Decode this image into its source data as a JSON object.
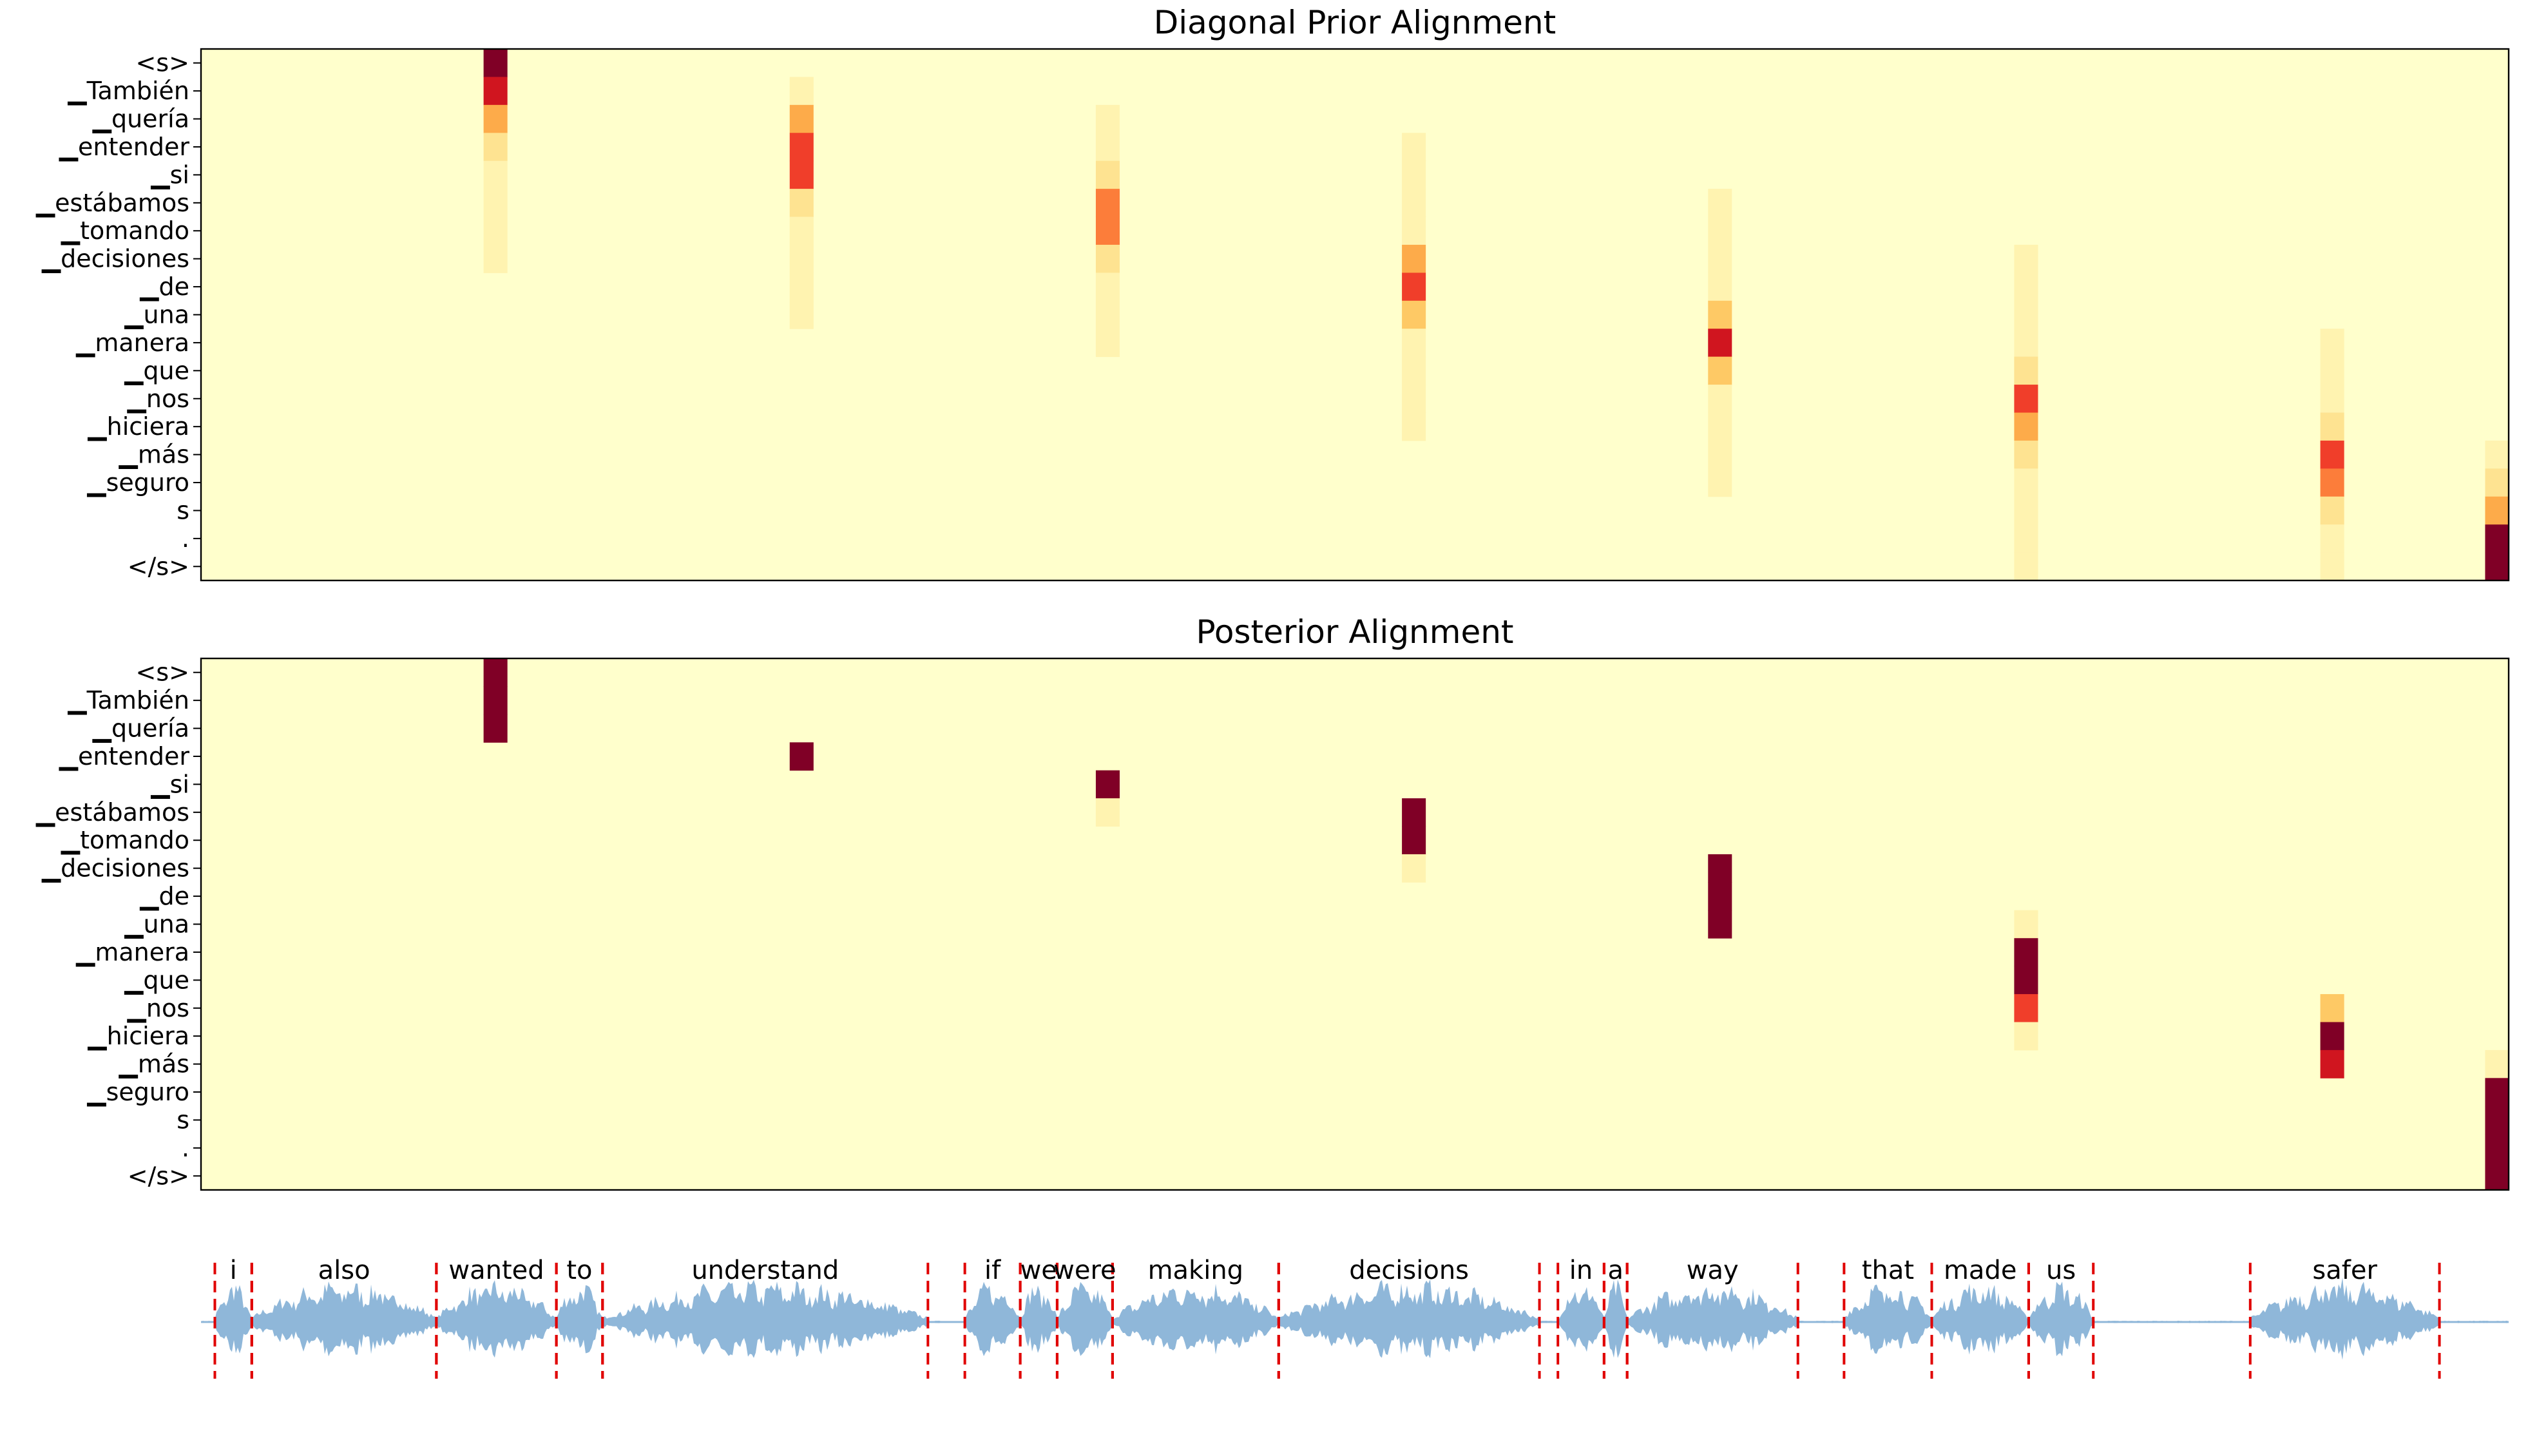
{
  "colors": {
    "background": "#ffffcc",
    "colormap": [
      "#ffffcc",
      "#fff3b0",
      "#fee391",
      "#fec965",
      "#fdab4a",
      "#fc7d3a",
      "#f03e2a",
      "#d0151f",
      "#800026"
    ],
    "waveform": "#8fb7d9",
    "boundary": "#e00000"
  },
  "chart_data": [
    {
      "type": "heatmap",
      "title": "Diagonal Prior Alignment",
      "y_tick_labels": [
        "<s>",
        "▁También",
        "▁quería",
        "▁entender",
        "▁si",
        "▁estábamos",
        "▁tomando",
        "▁decisiones",
        "▁de",
        "▁una",
        "▁manera",
        "▁que",
        "▁nos",
        "▁hiciera",
        "▁más",
        "▁seguro",
        "s",
        ".",
        "</s>"
      ],
      "n_columns": 98,
      "active_columns": [
        12,
        25,
        38,
        51,
        64,
        77,
        90,
        97
      ],
      "values": [
        [
          1.0,
          0.0,
          0.0,
          0.0,
          0.0,
          0.0,
          0.0,
          0.0
        ],
        [
          0.9,
          0.15,
          0.0,
          0.0,
          0.0,
          0.0,
          0.0,
          0.0
        ],
        [
          0.55,
          0.45,
          0.03,
          0.0,
          0.0,
          0.0,
          0.0,
          0.0
        ],
        [
          0.2,
          0.8,
          0.06,
          0.01,
          0.0,
          0.0,
          0.0,
          0.0
        ],
        [
          0.1,
          0.75,
          0.2,
          0.02,
          0.0,
          0.0,
          0.0,
          0.0
        ],
        [
          0.04,
          0.3,
          0.6,
          0.05,
          0.01,
          0.0,
          0.0,
          0.0
        ],
        [
          0.02,
          0.1,
          0.65,
          0.15,
          0.02,
          0.0,
          0.0,
          0.0
        ],
        [
          0.01,
          0.05,
          0.3,
          0.5,
          0.06,
          0.01,
          0.0,
          0.0
        ],
        [
          0.0,
          0.03,
          0.1,
          0.8,
          0.12,
          0.02,
          0.0,
          0.0
        ],
        [
          0.0,
          0.01,
          0.05,
          0.4,
          0.35,
          0.05,
          0.0,
          0.0
        ],
        [
          0.0,
          0.0,
          0.02,
          0.12,
          0.85,
          0.1,
          0.02,
          0.0
        ],
        [
          0.0,
          0.0,
          0.0,
          0.08,
          0.4,
          0.3,
          0.03,
          0.0
        ],
        [
          0.0,
          0.0,
          0.0,
          0.04,
          0.15,
          0.75,
          0.06,
          0.0
        ],
        [
          0.0,
          0.0,
          0.0,
          0.02,
          0.05,
          0.5,
          0.3,
          0.0
        ],
        [
          0.0,
          0.0,
          0.0,
          0.0,
          0.03,
          0.22,
          0.7,
          0.08
        ],
        [
          0.0,
          0.0,
          0.0,
          0.0,
          0.02,
          0.1,
          0.65,
          0.22
        ],
        [
          0.0,
          0.0,
          0.0,
          0.0,
          0.0,
          0.04,
          0.3,
          0.55
        ],
        [
          0.0,
          0.0,
          0.0,
          0.0,
          0.0,
          0.02,
          0.1,
          0.95
        ],
        [
          0.0,
          0.0,
          0.0,
          0.0,
          0.0,
          0.01,
          0.04,
          1.0
        ]
      ],
      "value_range": [
        0,
        1
      ]
    },
    {
      "type": "heatmap",
      "title": "Posterior Alignment",
      "y_tick_labels": [
        "<s>",
        "▁También",
        "▁quería",
        "▁entender",
        "▁si",
        "▁estábamos",
        "▁tomando",
        "▁decisiones",
        "▁de",
        "▁una",
        "▁manera",
        "▁que",
        "▁nos",
        "▁hiciera",
        "▁más",
        "▁seguro",
        "s",
        ".",
        "</s>"
      ],
      "n_columns": 98,
      "active_columns": [
        12,
        25,
        38,
        51,
        64,
        77,
        90,
        97
      ],
      "values": [
        [
          1.0,
          0.0,
          0.0,
          0.0,
          0.0,
          0.0,
          0.0,
          0.0
        ],
        [
          1.0,
          0.0,
          0.0,
          0.0,
          0.0,
          0.0,
          0.0,
          0.0
        ],
        [
          1.0,
          0.0,
          0.0,
          0.0,
          0.0,
          0.0,
          0.0,
          0.0
        ],
        [
          0.0,
          1.0,
          0.0,
          0.0,
          0.0,
          0.0,
          0.0,
          0.0
        ],
        [
          0.0,
          0.0,
          1.0,
          0.0,
          0.0,
          0.0,
          0.0,
          0.0
        ],
        [
          0.0,
          0.0,
          0.02,
          1.0,
          0.0,
          0.0,
          0.0,
          0.0
        ],
        [
          0.0,
          0.0,
          0.0,
          1.0,
          0.0,
          0.0,
          0.0,
          0.0
        ],
        [
          0.0,
          0.0,
          0.0,
          0.15,
          1.0,
          0.0,
          0.0,
          0.0
        ],
        [
          0.0,
          0.0,
          0.0,
          0.0,
          1.0,
          0.0,
          0.0,
          0.0
        ],
        [
          0.0,
          0.0,
          0.0,
          0.0,
          1.0,
          0.03,
          0.0,
          0.0
        ],
        [
          0.0,
          0.0,
          0.0,
          0.0,
          0.0,
          1.0,
          0.0,
          0.0
        ],
        [
          0.0,
          0.0,
          0.0,
          0.0,
          0.0,
          1.0,
          0.0,
          0.0
        ],
        [
          0.0,
          0.0,
          0.0,
          0.0,
          0.0,
          0.7,
          0.35,
          0.0
        ],
        [
          0.0,
          0.0,
          0.0,
          0.0,
          0.0,
          0.1,
          1.0,
          0.0
        ],
        [
          0.0,
          0.0,
          0.0,
          0.0,
          0.0,
          0.0,
          0.9,
          0.15
        ],
        [
          0.0,
          0.0,
          0.0,
          0.0,
          0.0,
          0.0,
          0.0,
          1.0
        ],
        [
          0.0,
          0.0,
          0.0,
          0.0,
          0.0,
          0.0,
          0.0,
          1.0
        ],
        [
          0.0,
          0.0,
          0.0,
          0.0,
          0.0,
          0.0,
          0.0,
          1.0
        ],
        [
          0.0,
          0.0,
          0.0,
          0.0,
          0.0,
          0.0,
          0.0,
          1.0
        ]
      ],
      "value_range": [
        0,
        1
      ]
    },
    {
      "type": "area",
      "title": "",
      "words": [
        "i",
        "also",
        "wanted",
        "to",
        "understand",
        "if",
        "we",
        "were",
        "making",
        "decisions",
        "in",
        "a",
        "way",
        "that",
        "made",
        "us",
        "safer"
      ],
      "word_boundaries": [
        [
          0.6,
          2.2
        ],
        [
          2.2,
          10.2
        ],
        [
          10.2,
          15.4
        ],
        [
          15.4,
          17.4
        ],
        [
          17.4,
          31.5
        ],
        [
          33.1,
          35.5
        ],
        [
          35.5,
          37.1
        ],
        [
          37.1,
          39.5
        ],
        [
          39.5,
          46.7
        ],
        [
          46.7,
          58.0
        ],
        [
          58.8,
          60.8
        ],
        [
          60.8,
          61.8
        ],
        [
          61.8,
          69.2
        ],
        [
          71.2,
          75.0
        ],
        [
          75.0,
          79.2
        ],
        [
          79.2,
          82.0
        ],
        [
          88.8,
          97.0
        ]
      ],
      "x_range": [
        0,
        100
      ]
    }
  ]
}
